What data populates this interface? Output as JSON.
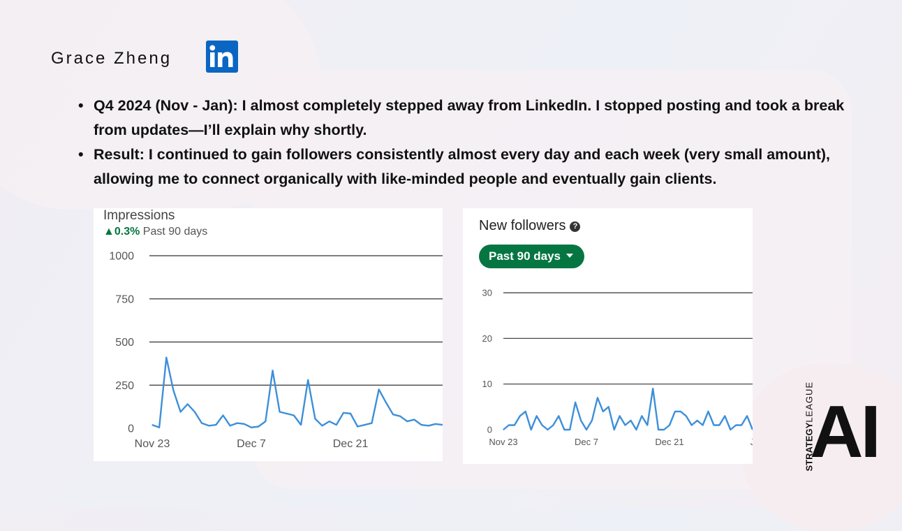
{
  "author": {
    "name": "Grace Zheng",
    "logo": "linkedin-logo"
  },
  "bullets": [
    "Q4 2024 (Nov - Jan): I almost completely stepped away from LinkedIn. I stopped posting and took a break from updates—I’ll explain why shortly.",
    "Result: I continued to gain followers consistently almost every day and each week (very small amount), allowing me to connect organically with like-minded people and eventually gain clients."
  ],
  "impressions_card": {
    "title": "Impressions",
    "delta_arrow": "▲",
    "delta": "0.3%",
    "period": "Past 90 days"
  },
  "followers_card": {
    "title": "New followers",
    "help_icon": "?",
    "period_button": "Past 90 days"
  },
  "brand": {
    "strategy": "STRATEGY",
    "league": "LEAGUE",
    "ai": "AI"
  },
  "colors": {
    "line": "#3d8fd9",
    "linkedin": "#0a66c2",
    "green": "#057642"
  },
  "chart_data": [
    {
      "type": "line",
      "title": "Impressions",
      "x_ticks": [
        "Nov 23",
        "Dec 7",
        "Dec 21"
      ],
      "y_ticks": [
        0,
        250,
        500,
        750,
        1000
      ],
      "ylim": [
        0,
        1000
      ],
      "x_count": 42,
      "tick_index": [
        0,
        14,
        28
      ],
      "values": [
        20,
        5,
        410,
        220,
        95,
        140,
        95,
        30,
        15,
        20,
        75,
        15,
        30,
        25,
        5,
        10,
        40,
        335,
        95,
        85,
        75,
        20,
        280,
        55,
        15,
        40,
        20,
        90,
        85,
        10,
        20,
        30,
        225,
        150,
        80,
        70,
        40,
        50,
        20,
        15,
        25,
        20
      ]
    },
    {
      "type": "line",
      "title": "New followers",
      "x_ticks": [
        "Nov 23",
        "Dec 7",
        "Dec 21",
        "J"
      ],
      "y_ticks": [
        0,
        10,
        20,
        30
      ],
      "ylim": [
        0,
        30
      ],
      "x_count": 46,
      "tick_index": [
        0,
        15,
        30,
        45
      ],
      "values": [
        0,
        1,
        1,
        3,
        4,
        0,
        3,
        1,
        0,
        1,
        3,
        0,
        0,
        6,
        2,
        0,
        2,
        7,
        4,
        5,
        0,
        3,
        1,
        2,
        0,
        3,
        1,
        9,
        0,
        0,
        1,
        4,
        4,
        3,
        1,
        2,
        1,
        4,
        1,
        1,
        3,
        0,
        1,
        1,
        3,
        0
      ]
    }
  ]
}
